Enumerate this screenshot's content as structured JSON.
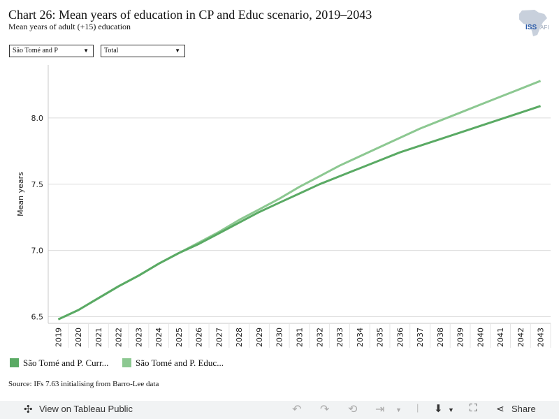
{
  "title": "Chart 26: Mean years of education in CP and Educ scenario, 2019–2043",
  "subtitle": "Mean years of adult (+15) education",
  "logo_text": "ISS AFRICA",
  "filters": {
    "country": "São Tomé and P",
    "sex": "Total"
  },
  "legend": [
    "São Tomé and P. Curr...",
    "São Tomé and P. Educ..."
  ],
  "source": "Source: IFs 7.63 initialising from Barro-Lee data",
  "toolbar": {
    "view_label": "View on Tableau Public",
    "share_label": "Share"
  },
  "colors": {
    "current": "#5aaa64",
    "educ": "#8cc891",
    "grid": "#dcdcdc",
    "toolbar_bg": "#f1f3f4"
  },
  "chart_data": {
    "type": "line",
    "ylabel": "Mean years",
    "xlabel": "",
    "ylim": [
      6.45,
      8.4
    ],
    "yticks": [
      6.5,
      7.0,
      7.5,
      8.0
    ],
    "ytick_labels": [
      "6.5",
      "7.0",
      "7.5",
      "8.0"
    ],
    "grid": true,
    "legend_position": "bottom-left",
    "x": [
      2019,
      2020,
      2021,
      2022,
      2023,
      2024,
      2025,
      2026,
      2027,
      2028,
      2029,
      2030,
      2031,
      2032,
      2033,
      2034,
      2035,
      2036,
      2037,
      2038,
      2039,
      2040,
      2041,
      2042,
      2043
    ],
    "series": [
      {
        "name": "São Tomé and P. Curr...",
        "values": [
          6.48,
          6.55,
          6.64,
          6.73,
          6.81,
          6.9,
          6.98,
          7.05,
          7.13,
          7.21,
          7.29,
          7.36,
          7.43,
          7.5,
          7.56,
          7.62,
          7.68,
          7.74,
          7.79,
          7.84,
          7.89,
          7.94,
          7.99,
          8.04,
          8.09
        ]
      },
      {
        "name": "São Tomé and P. Educ...",
        "values": [
          6.48,
          6.55,
          6.64,
          6.73,
          6.81,
          6.9,
          6.98,
          7.06,
          7.14,
          7.23,
          7.31,
          7.39,
          7.48,
          7.56,
          7.64,
          7.71,
          7.78,
          7.85,
          7.92,
          7.98,
          8.04,
          8.1,
          8.16,
          8.22,
          8.28
        ]
      }
    ]
  }
}
